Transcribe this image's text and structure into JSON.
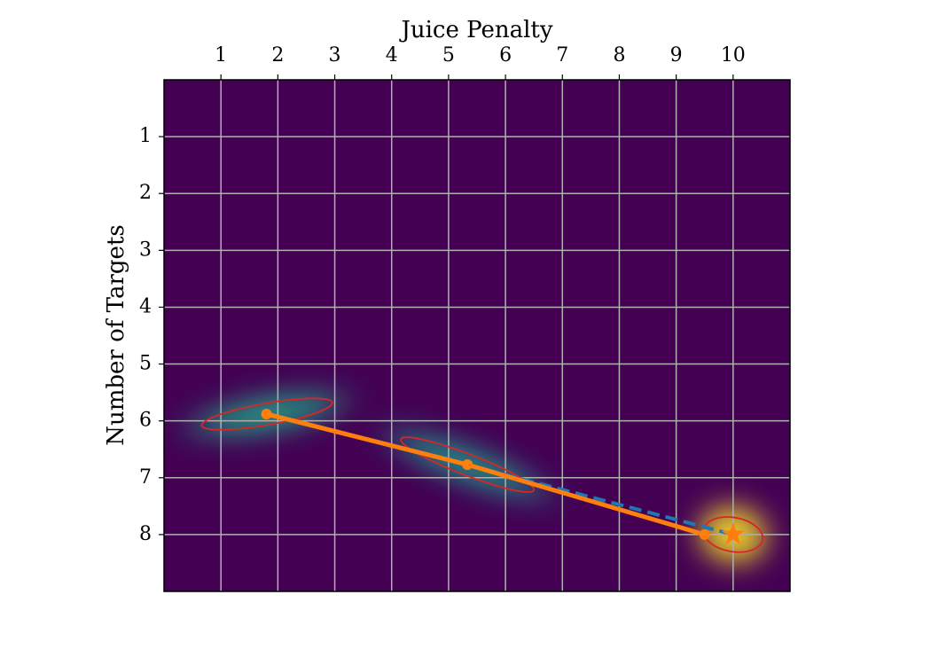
{
  "chart_data": {
    "type": "line",
    "title": "Juice Penalty",
    "y_label": "Number of Targets",
    "background_color": "#440154",
    "xlim": [
      0,
      11
    ],
    "ylim": [
      9,
      0
    ],
    "xticks": [
      1,
      2,
      3,
      4,
      5,
      6,
      7,
      8,
      9,
      10
    ],
    "yticks": [
      1,
      2,
      3,
      4,
      5,
      6,
      7,
      8
    ],
    "grid": true,
    "ellipses": [
      {
        "x": 1.81,
        "y": 5.88,
        "width": 2.33,
        "height": 0.38,
        "angle": -10,
        "color": "#d62728",
        "density_color": "#21a585"
      },
      {
        "x": 5.33,
        "y": 6.77,
        "width": 2.5,
        "height": 0.37,
        "angle": 21,
        "color": "#d62728",
        "density_color": "#1f9a8a"
      },
      {
        "x": 10.0,
        "y": 8.0,
        "width": 1.05,
        "height": 0.6,
        "angle": 10,
        "color": "#d62728",
        "density_color": "#fde725"
      }
    ],
    "series": [
      {
        "color": "#1f77b4",
        "dash": true,
        "x": [
          5.33,
          10.0
        ],
        "values": [
          6.77,
          8.0
        ]
      },
      {
        "color": "#ff7f0e",
        "dash": false,
        "x": [
          1.8,
          5.33,
          9.5
        ],
        "values": [
          5.88,
          6.77,
          8.0
        ]
      }
    ],
    "star": {
      "x": 10.0,
      "y": 8.0,
      "color": "#ff7f0e"
    }
  }
}
